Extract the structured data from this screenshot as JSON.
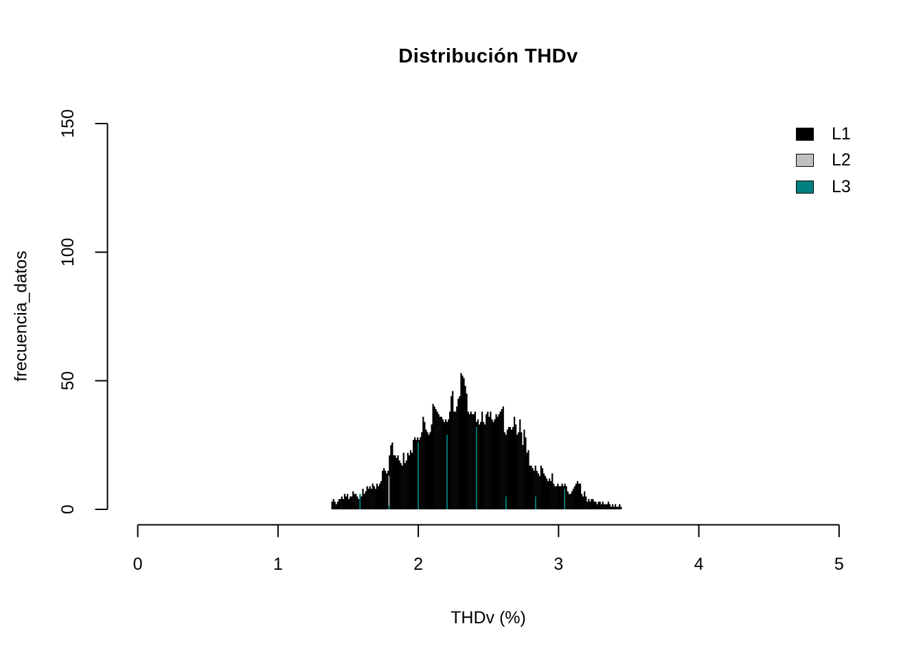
{
  "chart_data": {
    "type": "bar",
    "subtype": "histogram",
    "title": "Distribución THDv",
    "xlabel": "THDv (%)",
    "ylabel": "frecuencia_datos",
    "xlim": [
      0,
      5
    ],
    "ylim": [
      0,
      150
    ],
    "x_ticks": [
      0,
      1,
      2,
      3,
      4,
      5
    ],
    "y_ticks": [
      0,
      50,
      100,
      150
    ],
    "grid": false,
    "legend_position": "top-right",
    "bin_start": 1.38,
    "bin_width": 0.01,
    "series": [
      {
        "name": "L1",
        "color": "#000000",
        "counts": [
          3,
          4,
          3,
          2,
          3,
          4,
          4,
          5,
          4,
          6,
          5,
          6,
          4,
          5,
          5,
          7,
          6,
          6,
          5,
          4,
          6,
          5,
          8,
          6,
          7,
          9,
          8,
          9,
          8,
          10,
          9,
          8,
          10,
          9,
          10,
          11,
          15,
          16,
          15,
          14,
          15,
          21,
          25,
          26,
          21,
          21,
          20,
          21,
          19,
          18,
          17,
          22,
          18,
          19,
          22,
          21,
          23,
          22,
          27,
          28,
          27,
          28,
          27,
          28,
          30,
          36,
          34,
          31,
          30,
          29,
          30,
          33,
          41,
          40,
          39,
          38,
          37,
          36,
          36,
          35,
          34,
          35,
          34,
          35,
          38,
          44,
          46,
          38,
          38,
          40,
          43,
          44,
          53,
          52,
          51,
          48,
          45,
          38,
          37,
          38,
          37,
          37,
          38,
          34,
          35,
          33,
          34,
          38,
          34,
          33,
          37,
          38,
          36,
          38,
          35,
          34,
          35,
          37,
          36,
          37,
          38,
          39,
          40,
          30,
          29,
          31,
          32,
          32,
          31,
          32,
          36,
          33,
          29,
          30,
          35,
          30,
          25,
          31,
          28,
          22,
          23,
          17,
          17,
          16,
          15,
          17,
          15,
          14,
          13,
          17,
          16,
          14,
          13,
          12,
          11,
          12,
          11,
          14,
          10,
          9,
          9,
          10,
          9,
          9,
          10,
          9,
          10,
          9,
          7,
          6,
          6,
          7,
          8,
          9,
          10,
          11,
          10,
          10,
          6,
          5,
          7,
          5,
          3,
          4,
          3,
          4,
          4,
          3,
          3,
          2,
          3,
          3,
          2,
          3,
          2,
          2,
          2,
          3,
          2,
          1,
          2,
          1,
          2,
          1,
          1,
          2,
          1
        ]
      },
      {
        "name": "L2",
        "color": "#c0c0c0",
        "visible_slivers": [
          {
            "x": 1.791,
            "height": 13
          }
        ]
      },
      {
        "name": "L3",
        "color": "#008080",
        "visible_slivers": [
          {
            "x": 1.585,
            "height": 6
          },
          {
            "x": 1.791,
            "height": 1.5
          },
          {
            "x": 2.0,
            "height": 26
          },
          {
            "x": 2.205,
            "height": 29
          },
          {
            "x": 2.415,
            "height": 32
          },
          {
            "x": 2.625,
            "height": 5
          },
          {
            "x": 2.837,
            "height": 5
          },
          {
            "x": 3.043,
            "height": 8
          }
        ]
      }
    ],
    "legend": [
      {
        "label": "L1",
        "color": "#000000"
      },
      {
        "label": "L2",
        "color": "#c0c0c0"
      },
      {
        "label": "L3",
        "color": "#008080"
      }
    ]
  }
}
